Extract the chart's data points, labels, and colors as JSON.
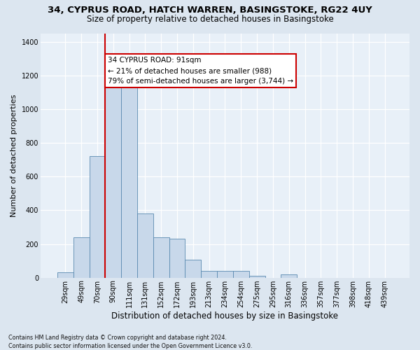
{
  "title_line1": "34, CYPRUS ROAD, HATCH WARREN, BASINGSTOKE, RG22 4UY",
  "title_line2": "Size of property relative to detached houses in Basingstoke",
  "xlabel": "Distribution of detached houses by size in Basingstoke",
  "ylabel": "Number of detached properties",
  "footnote": "Contains HM Land Registry data © Crown copyright and database right 2024.\nContains public sector information licensed under the Open Government Licence v3.0.",
  "bar_labels": [
    "29sqm",
    "49sqm",
    "70sqm",
    "90sqm",
    "111sqm",
    "131sqm",
    "152sqm",
    "172sqm",
    "193sqm",
    "213sqm",
    "234sqm",
    "254sqm",
    "275sqm",
    "295sqm",
    "316sqm",
    "336sqm",
    "357sqm",
    "377sqm",
    "398sqm",
    "418sqm",
    "439sqm"
  ],
  "bar_values": [
    30,
    240,
    720,
    1130,
    1140,
    380,
    240,
    230,
    105,
    40,
    40,
    40,
    10,
    0,
    20,
    0,
    0,
    0,
    0,
    0,
    0
  ],
  "bar_color": "#c8d8ea",
  "bar_edge_color": "#5a8ab0",
  "vline_index": 3,
  "vline_color": "#cc0000",
  "annotation_text": "34 CYPRUS ROAD: 91sqm\n← 21% of detached houses are smaller (988)\n79% of semi-detached houses are larger (3,744) →",
  "annotation_box_facecolor": "white",
  "annotation_box_edgecolor": "#cc0000",
  "ylim": [
    0,
    1450
  ],
  "yticks": [
    0,
    200,
    400,
    600,
    800,
    1000,
    1200,
    1400
  ],
  "fig_bg_color": "#dce6f0",
  "plot_bg_color": "#e8f0f8",
  "grid_color": "white",
  "title1_fontsize": 9.5,
  "title2_fontsize": 8.5,
  "ylabel_fontsize": 8,
  "xlabel_fontsize": 8.5,
  "tick_fontsize": 7,
  "annotation_fontsize": 7.5,
  "footnote_fontsize": 5.8
}
